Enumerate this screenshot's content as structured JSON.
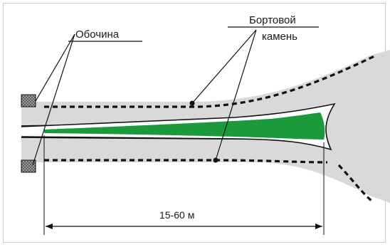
{
  "labels": {
    "shoulder": "Обочина",
    "curb_line1": "Бортовой",
    "curb_line2": "камень",
    "distance": "15-60 м"
  },
  "colors": {
    "island": "#1a9a3a",
    "road": "#d9d9d9",
    "road_edge": "#111111",
    "curb": "#111111",
    "roundabout": "#e6e6e6",
    "brick": "#8f8f8f"
  },
  "icons": {
    "shoulder_marker": "hatched-square",
    "callout_point": "filled-dot"
  }
}
